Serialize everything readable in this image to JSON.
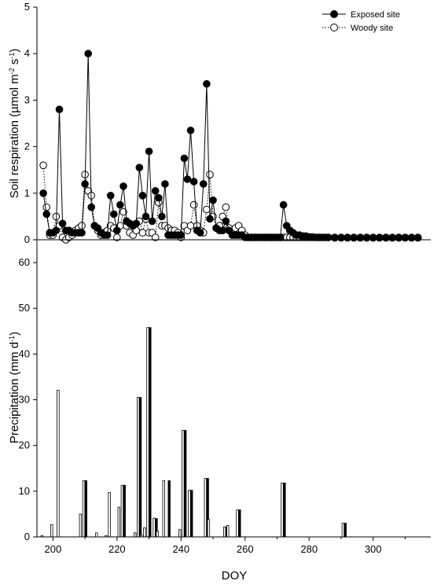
{
  "chart_data": [
    {
      "type": "line",
      "panel": "top",
      "ylabel_main": "Soil respiration (µmol m",
      "ylabel_sup1": "-2",
      "ylabel_mid": " s",
      "ylabel_sup2": "-1",
      "ylabel_end": ")",
      "ylim": [
        0,
        5
      ],
      "yticks": [
        0,
        1,
        2,
        3,
        4,
        5
      ],
      "xlim": [
        195,
        318
      ],
      "legend_position": "top-right",
      "series": [
        {
          "name": "Exposed site",
          "marker": "filled-circle",
          "line": "solid",
          "color": "#000000",
          "x": [
            197,
            198,
            199,
            200,
            201,
            202,
            203,
            204,
            205,
            206,
            207,
            208,
            209,
            210,
            211,
            212,
            213,
            214,
            215,
            216,
            217,
            218,
            219,
            220,
            221,
            222,
            223,
            224,
            225,
            226,
            227,
            228,
            229,
            230,
            231,
            232,
            233,
            234,
            235,
            236,
            237,
            238,
            239,
            240,
            241,
            242,
            243,
            244,
            245,
            246,
            247,
            248,
            249,
            250,
            251,
            252,
            253,
            254,
            255,
            256,
            257,
            258,
            259,
            260,
            261,
            262,
            263,
            264,
            265,
            266,
            267,
            268,
            269,
            270,
            271,
            272,
            273,
            274,
            275,
            276,
            277,
            278,
            279,
            280,
            281,
            282,
            283,
            284,
            285,
            286,
            288,
            290,
            292,
            294,
            296,
            298,
            300,
            302,
            304,
            306,
            308,
            310,
            312,
            314
          ],
          "y": [
            1.0,
            0.55,
            0.15,
            0.15,
            0.2,
            2.8,
            0.35,
            0.2,
            0.2,
            0.15,
            0.15,
            0.15,
            0.15,
            1.2,
            4.0,
            0.7,
            0.3,
            0.25,
            0.15,
            0.1,
            0.1,
            0.95,
            0.55,
            0.2,
            0.75,
            1.15,
            0.4,
            0.35,
            0.3,
            0.35,
            1.55,
            0.95,
            0.5,
            1.9,
            0.4,
            1.05,
            0.9,
            0.5,
            1.2,
            0.1,
            0.1,
            0.1,
            0.1,
            0.1,
            1.75,
            1.3,
            2.35,
            1.25,
            0.2,
            0.15,
            1.2,
            3.35,
            0.45,
            0.85,
            0.25,
            0.2,
            0.2,
            0.4,
            0.2,
            0.1,
            0.1,
            0.1,
            0.1,
            0.05,
            0.05,
            0.05,
            0.05,
            0.05,
            0.05,
            0.05,
            0.05,
            0.05,
            0.05,
            0.05,
            0.05,
            0.75,
            0.3,
            0.2,
            0.15,
            0.1,
            0.1,
            0.08,
            0.08,
            0.06,
            0.06,
            0.05,
            0.05,
            0.05,
            0.05,
            0.05,
            0.04,
            0.04,
            0.04,
            0.04,
            0.04,
            0.04,
            0.04,
            0.04,
            0.04,
            0.04,
            0.04,
            0.04,
            0.04,
            0.04
          ]
        },
        {
          "name": "Woody site",
          "marker": "open-circle",
          "line": "dotted",
          "color": "#000000",
          "x": [
            197,
            198,
            199,
            200,
            201,
            202,
            203,
            204,
            205,
            206,
            207,
            208,
            209,
            210,
            211,
            212,
            213,
            214,
            215,
            216,
            217,
            218,
            219,
            220,
            221,
            222,
            223,
            224,
            225,
            226,
            227,
            228,
            229,
            230,
            231,
            232,
            233,
            234,
            235,
            236,
            237,
            238,
            239,
            240,
            241,
            242,
            243,
            244,
            245,
            246,
            247,
            248,
            249,
            250,
            251,
            252,
            253,
            254,
            255,
            256,
            257,
            258,
            259,
            260,
            261,
            262,
            263,
            264,
            265,
            266,
            267,
            268,
            269,
            270,
            271,
            272,
            273,
            274,
            275,
            276,
            277,
            278,
            279,
            280,
            281,
            282,
            283,
            284,
            285,
            286,
            288,
            290,
            292,
            294,
            296,
            298,
            300,
            302,
            304,
            306,
            308,
            310,
            312,
            314
          ],
          "y": [
            1.6,
            0.7,
            0.1,
            0.1,
            0.5,
            0.3,
            0.05,
            0.0,
            0.05,
            0.1,
            0.2,
            0.25,
            0.3,
            1.4,
            1.05,
            0.95,
            0.3,
            0.2,
            0.1,
            0.15,
            0.2,
            0.3,
            0.25,
            0.05,
            0.3,
            0.6,
            0.3,
            0.15,
            0.1,
            0.2,
            0.4,
            0.15,
            0.45,
            0.15,
            0.15,
            0.05,
            0.8,
            0.3,
            0.3,
            0.25,
            0.2,
            0.2,
            0.15,
            0.05,
            0.3,
            0.2,
            0.3,
            0.75,
            0.3,
            0.2,
            0.15,
            0.65,
            1.4,
            0.5,
            0.25,
            0.3,
            0.5,
            0.7,
            0.25,
            0.15,
            0.25,
            0.3,
            0.2,
            0.1,
            0.05,
            0.05,
            0.05,
            0.05,
            0.05,
            0.05,
            0.05,
            0.05,
            0.05,
            0.05,
            0.05,
            0.05,
            0.05,
            0.05,
            0.05,
            0.05,
            0.05,
            0.05,
            0.05,
            0.05,
            0.05,
            0.05,
            0.05,
            0.05,
            0.05,
            0.05,
            0.05,
            0.05,
            0.05,
            0.05,
            0.05,
            0.05,
            0.05,
            0.05,
            0.05,
            0.05,
            0.05,
            0.05,
            0.05,
            0.05
          ]
        }
      ]
    },
    {
      "type": "bar",
      "panel": "bottom",
      "ylabel_main": "Precipitation (mm d",
      "ylabel_sup": "-1",
      "ylabel_end": ")",
      "xlabel": "DOY",
      "ylim": [
        0,
        65
      ],
      "yticks": [
        0,
        10,
        20,
        30,
        40,
        50,
        60
      ],
      "xlim": [
        195,
        318
      ],
      "xticks": [
        200,
        220,
        240,
        260,
        280,
        300
      ],
      "series": [
        {
          "name": "Exposed site",
          "fill": "#000000",
          "x": [
            210,
            222,
            227,
            230,
            232,
            236,
            241,
            243,
            248,
            254,
            258,
            272,
            291
          ],
          "y": [
            12.3,
            11.3,
            30.5,
            45.8,
            4.0,
            12.3,
            23.3,
            10.2,
            12.8,
            2.2,
            5.9,
            11.8,
            3.0
          ]
        },
        {
          "name": "Woody site",
          "fill": "#ffffff",
          "x": [
            197,
            200,
            202,
            209,
            210,
            214,
            217,
            218,
            221,
            222,
            226,
            227,
            228,
            229,
            230,
            232,
            233,
            235,
            240,
            241,
            243,
            248,
            249,
            254,
            255,
            258,
            272,
            291
          ],
          "y": [
            0.3,
            2.7,
            32.1,
            5.0,
            12.3,
            0.9,
            0.3,
            9.7,
            6.5,
            11.3,
            0.9,
            30.5,
            0.4,
            2.0,
            45.8,
            4.1,
            1.2,
            12.3,
            1.6,
            23.3,
            10.2,
            12.8,
            3.8,
            2.2,
            2.5,
            5.9,
            11.8,
            3.0
          ]
        }
      ]
    }
  ]
}
